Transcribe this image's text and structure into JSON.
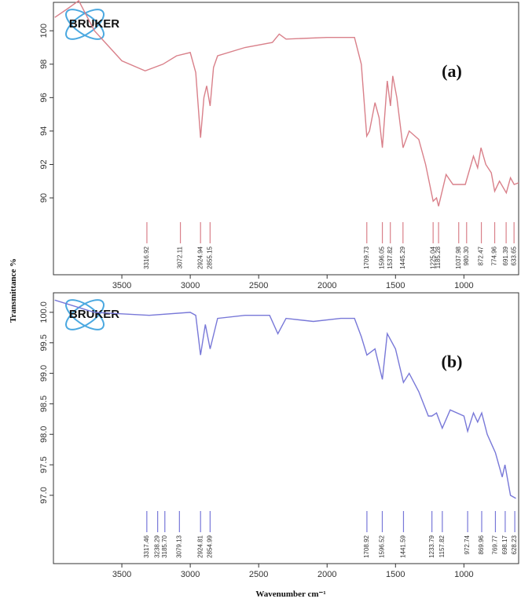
{
  "y_label": "Transmittance %",
  "x_label": "Wavenumber cm⁻¹",
  "chart_data": [
    {
      "type": "line",
      "label": "(a)",
      "logo": "BRUKER",
      "color": "#d9808a",
      "x": [
        3990,
        3900,
        3815,
        3700,
        3500,
        3330,
        3200,
        3100,
        3000,
        2960,
        2925,
        2900,
        2880,
        2855,
        2830,
        2800,
        2600,
        2400,
        2350,
        2300,
        2000,
        1800,
        1750,
        1710,
        1690,
        1650,
        1620,
        1596,
        1560,
        1537,
        1520,
        1490,
        1445,
        1400,
        1330,
        1280,
        1225,
        1200,
        1185,
        1130,
        1080,
        1040,
        990,
        930,
        900,
        875,
        840,
        800,
        775,
        740,
        690,
        660,
        633,
        600
      ],
      "values": [
        100.8,
        101.3,
        101.8,
        100.0,
        98.2,
        97.6,
        98.0,
        98.5,
        98.7,
        97.5,
        93.6,
        96.0,
        96.7,
        95.5,
        97.8,
        98.5,
        99.0,
        99.3,
        99.8,
        99.5,
        99.6,
        99.6,
        98.0,
        93.7,
        94.0,
        95.7,
        94.8,
        93.0,
        97.0,
        95.5,
        97.3,
        96.0,
        93.0,
        94.0,
        93.5,
        92.0,
        89.8,
        90.0,
        89.5,
        91.4,
        90.8,
        90.8,
        90.8,
        92.5,
        91.8,
        93.0,
        92.0,
        91.5,
        90.4,
        91.0,
        90.3,
        91.2,
        90.8,
        90.9
      ],
      "xlim": [
        4000,
        600
      ],
      "xticks": [
        3500,
        3000,
        2500,
        2000,
        1500,
        1000
      ],
      "ylim": [
        85.4,
        101.7
      ],
      "yticks": [
        90,
        92,
        94,
        96,
        98,
        100
      ],
      "peaks": [
        3316.92,
        3072.11,
        2924.94,
        2855.15,
        1709.73,
        1596.05,
        1537.82,
        1445.29,
        1225.04,
        1185.28,
        1037.98,
        {
          "value": 980.3,
          "label": "980.30"
        },
        872.47,
        774.96,
        691.39,
        633.65
      ]
    },
    {
      "type": "line",
      "label": "(b)",
      "logo": "BRUKER",
      "color": "#7878d8",
      "x": [
        3990,
        3700,
        3300,
        3000,
        2960,
        2925,
        2890,
        2855,
        2800,
        2600,
        2420,
        2360,
        2300,
        2100,
        1900,
        1800,
        1750,
        1709,
        1650,
        1596,
        1560,
        1500,
        1442,
        1400,
        1330,
        1260,
        1234,
        1200,
        1158,
        1100,
        1000,
        973,
        930,
        900,
        870,
        830,
        790,
        770,
        720,
        700,
        660,
        620
      ],
      "values": [
        100.2,
        100.0,
        99.95,
        100.0,
        99.95,
        99.3,
        99.8,
        99.4,
        99.9,
        99.95,
        99.95,
        99.65,
        99.9,
        99.85,
        99.9,
        99.9,
        99.6,
        99.3,
        99.4,
        98.9,
        99.65,
        99.4,
        98.85,
        99.0,
        98.7,
        98.3,
        98.3,
        98.35,
        98.1,
        98.4,
        98.3,
        98.05,
        98.35,
        98.2,
        98.35,
        98.0,
        97.8,
        97.7,
        97.3,
        97.5,
        97.0,
        96.95
      ],
      "xlim": [
        4000,
        600
      ],
      "xticks": [
        3500,
        3000,
        2500,
        2000,
        1500,
        1000
      ],
      "ylim": [
        95.88,
        100.32
      ],
      "yticks": [
        {
          "value": 97,
          "label": "97.0"
        },
        97.5,
        {
          "value": 98,
          "label": "98.0"
        },
        98.5,
        {
          "value": 99,
          "label": "99.0"
        },
        99.5,
        {
          "value": 100,
          "label": "100.0"
        }
      ],
      "peaks": [
        3317.46,
        3238.29,
        {
          "value": 3185.7,
          "label": "3185.70"
        },
        3079.13,
        2924.81,
        2854.99,
        1708.92,
        1596.52,
        1441.59,
        1233.79,
        1157.82,
        972.74,
        869.96,
        769.77,
        698.17,
        628.23
      ]
    }
  ]
}
